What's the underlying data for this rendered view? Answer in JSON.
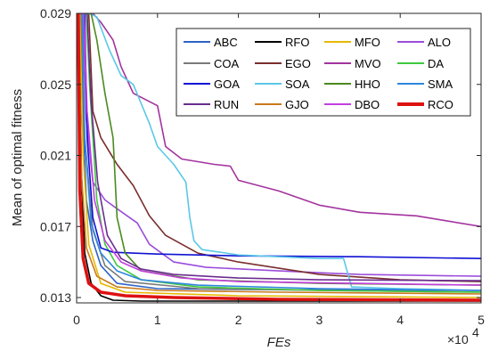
{
  "chart_data": {
    "type": "line",
    "title": "",
    "xlabel": "FEs",
    "ylabel": "Mean of optimal fitness",
    "x_multiplier_label": "×10",
    "x_multiplier_exp": "4",
    "xlim": [
      0,
      50000
    ],
    "ylim": [
      0.0127,
      0.029
    ],
    "x_ticks": [
      0,
      10000,
      20000,
      30000,
      40000,
      50000
    ],
    "x_tick_labels": [
      "0",
      "1",
      "2",
      "3",
      "4",
      "5"
    ],
    "y_ticks": [
      0.013,
      0.017,
      0.021,
      0.025,
      0.029
    ],
    "y_tick_labels": [
      "0.013",
      "0.017",
      "0.021",
      "0.025",
      "0.029"
    ],
    "grid": false,
    "legend_position": "top-right",
    "legend_columns": 4,
    "series": [
      {
        "name": "ABC",
        "color": "#2d63c7",
        "points": [
          [
            0,
            0.029
          ],
          [
            500,
            0.029
          ],
          [
            800,
            0.023
          ],
          [
            1200,
            0.0185
          ],
          [
            2000,
            0.0162
          ],
          [
            3000,
            0.0148
          ],
          [
            5000,
            0.0138
          ],
          [
            10000,
            0.0135
          ],
          [
            20000,
            0.01345
          ],
          [
            50000,
            0.0134
          ]
        ]
      },
      {
        "name": "RFO",
        "color": "#000000",
        "points": [
          [
            0,
            0.029
          ],
          [
            300,
            0.029
          ],
          [
            600,
            0.02
          ],
          [
            1000,
            0.0155
          ],
          [
            1800,
            0.0138
          ],
          [
            3000,
            0.0131
          ],
          [
            4500,
            0.01285
          ],
          [
            8000,
            0.0128
          ],
          [
            50000,
            0.0128
          ]
        ]
      },
      {
        "name": "MFO",
        "color": "#e6b800",
        "points": [
          [
            0,
            0.029
          ],
          [
            400,
            0.029
          ],
          [
            800,
            0.021
          ],
          [
            1500,
            0.016
          ],
          [
            3000,
            0.0138
          ],
          [
            6000,
            0.0133
          ],
          [
            20000,
            0.0131
          ],
          [
            50000,
            0.013
          ]
        ]
      },
      {
        "name": "ALO",
        "color": "#9b4ddb",
        "points": [
          [
            0,
            0.029
          ],
          [
            800,
            0.029
          ],
          [
            1200,
            0.023
          ],
          [
            2000,
            0.0195
          ],
          [
            3500,
            0.0185
          ],
          [
            5000,
            0.018
          ],
          [
            7500,
            0.0172
          ],
          [
            9000,
            0.016
          ],
          [
            12000,
            0.015
          ],
          [
            16000,
            0.0147
          ],
          [
            25000,
            0.0145
          ],
          [
            35000,
            0.0143
          ],
          [
            50000,
            0.0142
          ]
        ]
      },
      {
        "name": "COA",
        "color": "#7a7a7a",
        "points": [
          [
            0,
            0.029
          ],
          [
            600,
            0.029
          ],
          [
            1000,
            0.022
          ],
          [
            2000,
            0.0168
          ],
          [
            3500,
            0.0148
          ],
          [
            6000,
            0.0139
          ],
          [
            15000,
            0.0135
          ],
          [
            30000,
            0.0134
          ],
          [
            50000,
            0.0133
          ]
        ]
      },
      {
        "name": "EGO",
        "color": "#7a2e2e",
        "points": [
          [
            0,
            0.029
          ],
          [
            1500,
            0.029
          ],
          [
            2000,
            0.0235
          ],
          [
            3000,
            0.022
          ],
          [
            5000,
            0.0205
          ],
          [
            7000,
            0.0193
          ],
          [
            9000,
            0.0176
          ],
          [
            11000,
            0.0165
          ],
          [
            15000,
            0.0155
          ],
          [
            20000,
            0.015
          ],
          [
            30000,
            0.0143
          ],
          [
            40000,
            0.014
          ],
          [
            50000,
            0.0139
          ]
        ]
      },
      {
        "name": "MVO",
        "color": "#a3339e",
        "points": [
          [
            0,
            0.029
          ],
          [
            2000,
            0.029
          ],
          [
            3000,
            0.0285
          ],
          [
            4500,
            0.0275
          ],
          [
            5500,
            0.026
          ],
          [
            7000,
            0.0245
          ],
          [
            10000,
            0.0238
          ],
          [
            11000,
            0.0215
          ],
          [
            13000,
            0.0208
          ],
          [
            17000,
            0.0205
          ],
          [
            19000,
            0.0204
          ],
          [
            20000,
            0.0196
          ],
          [
            25000,
            0.019
          ],
          [
            30000,
            0.0182
          ],
          [
            35000,
            0.0178
          ],
          [
            42000,
            0.0176
          ],
          [
            50000,
            0.017
          ]
        ]
      },
      {
        "name": "DA",
        "color": "#3ec93e",
        "points": [
          [
            0,
            0.029
          ],
          [
            1200,
            0.029
          ],
          [
            1600,
            0.025
          ],
          [
            2500,
            0.0185
          ],
          [
            3500,
            0.016
          ],
          [
            5000,
            0.0148
          ],
          [
            8000,
            0.014
          ],
          [
            15000,
            0.0136
          ],
          [
            30000,
            0.0134
          ],
          [
            50000,
            0.0133
          ]
        ]
      },
      {
        "name": "GOA",
        "color": "#1010d4",
        "points": [
          [
            0,
            0.029
          ],
          [
            1000,
            0.029
          ],
          [
            1300,
            0.022
          ],
          [
            2000,
            0.0175
          ],
          [
            3000,
            0.0158
          ],
          [
            4500,
            0.01555
          ],
          [
            10000,
            0.01545
          ],
          [
            20000,
            0.01535
          ],
          [
            35000,
            0.0153
          ],
          [
            50000,
            0.0152
          ]
        ]
      },
      {
        "name": "SOA",
        "color": "#5bc8e8",
        "points": [
          [
            0,
            0.029
          ],
          [
            1500,
            0.029
          ],
          [
            2500,
            0.0288
          ],
          [
            4000,
            0.027
          ],
          [
            5500,
            0.0255
          ],
          [
            7000,
            0.025
          ],
          [
            9000,
            0.0228
          ],
          [
            10000,
            0.0215
          ],
          [
            12000,
            0.0205
          ],
          [
            13500,
            0.0195
          ],
          [
            14000,
            0.0175
          ],
          [
            14500,
            0.0162
          ],
          [
            15500,
            0.0157
          ],
          [
            20000,
            0.0154
          ],
          [
            30000,
            0.0152
          ],
          [
            33000,
            0.0152
          ],
          [
            34000,
            0.0136
          ],
          [
            40000,
            0.0135
          ],
          [
            50000,
            0.0134
          ]
        ]
      },
      {
        "name": "HHO",
        "color": "#4a8a1e",
        "points": [
          [
            0,
            0.029
          ],
          [
            1800,
            0.029
          ],
          [
            2500,
            0.0275
          ],
          [
            3500,
            0.0245
          ],
          [
            4500,
            0.022
          ],
          [
            5000,
            0.0175
          ],
          [
            6000,
            0.0155
          ],
          [
            8000,
            0.0145
          ],
          [
            15000,
            0.014
          ],
          [
            30000,
            0.0138
          ],
          [
            50000,
            0.0137
          ]
        ]
      },
      {
        "name": "SMA",
        "color": "#2e86de",
        "points": [
          [
            0,
            0.029
          ],
          [
            700,
            0.029
          ],
          [
            1000,
            0.022
          ],
          [
            1800,
            0.0172
          ],
          [
            3000,
            0.0155
          ],
          [
            5000,
            0.0145
          ],
          [
            8000,
            0.014
          ],
          [
            15000,
            0.0137
          ],
          [
            30000,
            0.0135
          ],
          [
            50000,
            0.0134
          ]
        ]
      },
      {
        "name": "RUN",
        "color": "#6a2d8f",
        "points": [
          [
            0,
            0.029
          ],
          [
            1300,
            0.029
          ],
          [
            1800,
            0.024
          ],
          [
            2600,
            0.0195
          ],
          [
            3800,
            0.0165
          ],
          [
            5500,
            0.0152
          ],
          [
            8000,
            0.0146
          ],
          [
            12000,
            0.0143
          ],
          [
            20000,
            0.0141
          ],
          [
            30000,
            0.014
          ],
          [
            50000,
            0.01395
          ]
        ]
      },
      {
        "name": "GJO",
        "color": "#c87a1a",
        "points": [
          [
            0,
            0.029
          ],
          [
            300,
            0.029
          ],
          [
            600,
            0.02
          ],
          [
            1200,
            0.0158
          ],
          [
            2500,
            0.0142
          ],
          [
            5000,
            0.0136
          ],
          [
            10000,
            0.0134
          ],
          [
            25000,
            0.0133
          ],
          [
            50000,
            0.0132
          ]
        ]
      },
      {
        "name": "DBO",
        "color": "#c43ee0",
        "points": [
          [
            0,
            0.029
          ],
          [
            900,
            0.029
          ],
          [
            1300,
            0.0235
          ],
          [
            2200,
            0.0185
          ],
          [
            3500,
            0.0162
          ],
          [
            5500,
            0.015
          ],
          [
            8000,
            0.0145
          ],
          [
            13000,
            0.0141
          ],
          [
            20000,
            0.0139
          ],
          [
            35000,
            0.0138
          ],
          [
            50000,
            0.0137
          ]
        ]
      },
      {
        "name": "RCO",
        "color": "#dd1111",
        "points": [
          [
            0,
            0.029
          ],
          [
            200,
            0.029
          ],
          [
            400,
            0.019
          ],
          [
            800,
            0.0152
          ],
          [
            1500,
            0.0138
          ],
          [
            3000,
            0.0133
          ],
          [
            6000,
            0.0131
          ],
          [
            12000,
            0.013
          ],
          [
            25000,
            0.0129
          ],
          [
            50000,
            0.01285
          ]
        ]
      }
    ]
  }
}
